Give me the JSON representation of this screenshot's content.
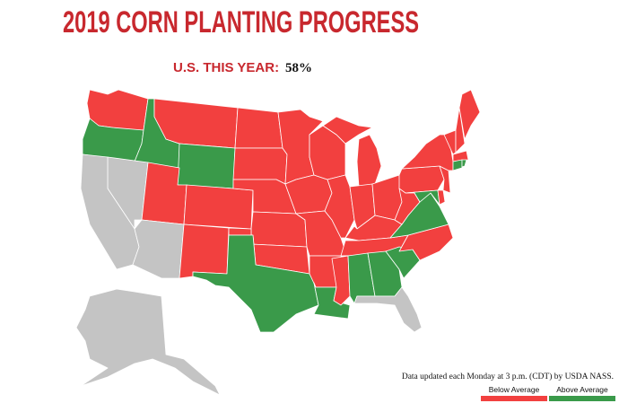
{
  "header": {
    "title": "2019 CORN PLANTING PROGRESS",
    "summary_label": "U.S. THIS YEAR:",
    "summary_value": "58%"
  },
  "note": "Data updated each Monday at 3 p.m. (CDT) by USDA NASS.",
  "legend": [
    {
      "label": "Below Average",
      "color": "#f2403f"
    },
    {
      "label": "Above Average",
      "color": "#3a9a4a"
    }
  ]
}
